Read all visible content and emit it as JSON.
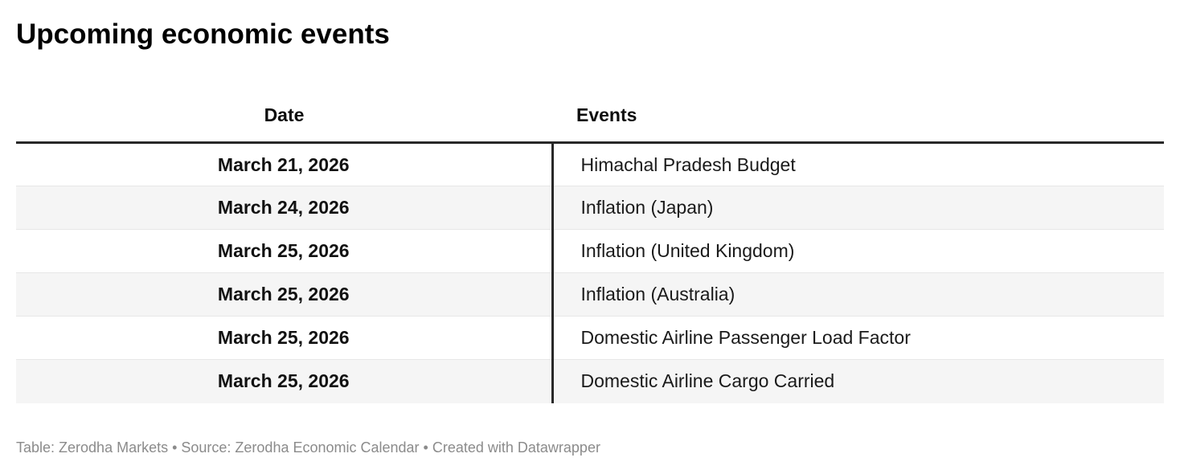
{
  "title": "Upcoming economic events",
  "table": {
    "columns": [
      "Date",
      "Events"
    ],
    "rows": [
      {
        "date": "March 21, 2026",
        "event": "Himachal Pradesh Budget"
      },
      {
        "date": "March 24, 2026",
        "event": "Inflation (Japan)"
      },
      {
        "date": "March 25, 2026",
        "event": "Inflation (United Kingdom)"
      },
      {
        "date": "March 25, 2026",
        "event": "Inflation (Australia)"
      },
      {
        "date": "March 25, 2026",
        "event": "Domestic Airline Passenger Load Factor"
      },
      {
        "date": "March 25, 2026",
        "event": "Domestic Airline Cargo Carried"
      }
    ]
  },
  "footer": {
    "text": "Table: Zerodha Markets • Source: Zerodha Economic Calendar • Created with Datawrapper"
  },
  "colors": {
    "background": "#ffffff",
    "title_text": "#000000",
    "body_text": "#1a1a1a",
    "header_rule": "#282828",
    "column_divider": "#282828",
    "row_stripe": "#f5f5f5",
    "row_separator": "#e7e7e7",
    "footer_text": "#8b8b8b"
  },
  "chart_data": {
    "type": "table",
    "title": "Upcoming economic events",
    "columns": [
      "Date",
      "Events"
    ],
    "rows": [
      [
        "March 21, 2026",
        "Himachal Pradesh Budget"
      ],
      [
        "March 24, 2026",
        "Inflation (Japan)"
      ],
      [
        "March 25, 2026",
        "Inflation (United Kingdom)"
      ],
      [
        "March 25, 2026",
        "Inflation (Australia)"
      ],
      [
        "March 25, 2026",
        "Domestic Airline Passenger Load Factor"
      ],
      [
        "March 25, 2026",
        "Domestic Airline Cargo Carried"
      ]
    ],
    "layout": {
      "date_column_align": "center",
      "date_column_bold": true,
      "events_column_align": "left",
      "zebra_striping": true,
      "header_rule": "3px solid dark",
      "vertical_divider_between_columns": true
    }
  }
}
